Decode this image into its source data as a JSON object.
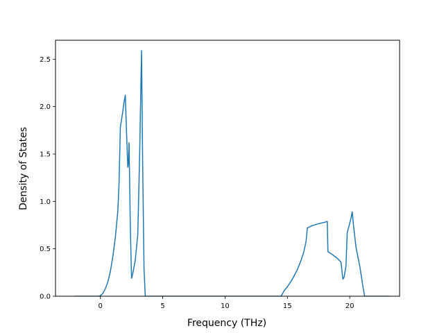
{
  "chart_data": {
    "type": "line",
    "title": "",
    "xlabel": "Frequency (THz)",
    "ylabel": "Density of States",
    "xlim": [
      -3.6,
      24.0
    ],
    "ylim": [
      0,
      2.7
    ],
    "grid": false,
    "xticks": [
      0,
      5,
      10,
      15,
      20
    ],
    "yticks": [
      0.0,
      0.5,
      1.0,
      1.5,
      2.0,
      2.5
    ],
    "xtick_labels": [
      "0",
      "5",
      "10",
      "15",
      "20"
    ],
    "ytick_labels": [
      "0.0",
      "0.5",
      "1.0",
      "1.5",
      "2.0",
      "2.5"
    ],
    "series": [
      {
        "name": "",
        "color": "#1f77b4",
        "x": [
          -2.1,
          -0.1,
          0.0,
          0.2,
          0.4,
          0.6,
          0.8,
          1.0,
          1.2,
          1.4,
          1.5,
          1.6,
          1.8,
          1.9,
          2.0,
          2.1,
          2.2,
          2.25,
          2.3,
          2.4,
          2.5,
          2.6,
          2.8,
          3.0,
          3.15,
          3.3,
          3.4,
          3.5,
          3.6,
          14.5,
          14.7,
          15.0,
          15.4,
          15.8,
          16.1,
          16.3,
          16.5,
          16.6,
          17.0,
          17.5,
          18.0,
          18.2,
          18.25,
          18.6,
          19.0,
          19.3,
          19.45,
          19.55,
          19.7,
          19.8,
          20.0,
          20.1,
          20.2,
          20.3,
          20.5,
          20.8,
          21.1,
          21.2,
          23.2
        ],
        "y": [
          0.0,
          0.0,
          0.005,
          0.03,
          0.08,
          0.15,
          0.26,
          0.42,
          0.62,
          0.9,
          1.2,
          1.78,
          1.95,
          2.05,
          2.12,
          1.72,
          1.36,
          1.4,
          1.62,
          0.75,
          0.19,
          0.24,
          0.38,
          0.65,
          1.5,
          2.59,
          1.3,
          0.3,
          0.0,
          0.0,
          0.05,
          0.1,
          0.18,
          0.28,
          0.38,
          0.46,
          0.58,
          0.72,
          0.745,
          0.765,
          0.78,
          0.79,
          0.47,
          0.44,
          0.4,
          0.36,
          0.18,
          0.2,
          0.32,
          0.67,
          0.77,
          0.82,
          0.89,
          0.75,
          0.52,
          0.32,
          0.07,
          0.0,
          0.0
        ]
      }
    ]
  }
}
